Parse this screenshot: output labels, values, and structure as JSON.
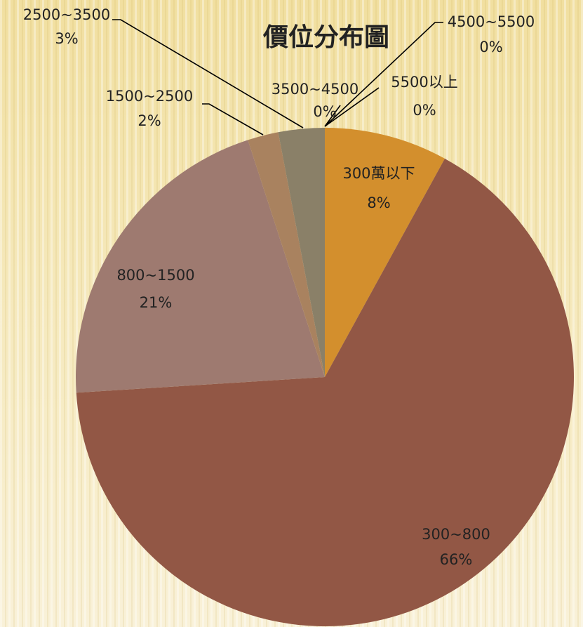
{
  "chart_data": {
    "type": "pie",
    "title": "價位分布圖",
    "categories": [
      "300萬以下",
      "300~800",
      "800~1500",
      "1500~2500",
      "2500~3500",
      "3500~4500",
      "4500~5500",
      "5500以上"
    ],
    "values": [
      8,
      66,
      21,
      2,
      3,
      0,
      0,
      0
    ],
    "value_labels": [
      "8%",
      "66%",
      "21%",
      "2%",
      "3%",
      "0%",
      "0%",
      "0%"
    ],
    "colors": [
      "#d38f2d",
      "#925745",
      "#9e7a70",
      "#a9825f",
      "#8a8068",
      "#7d8a6a",
      "#6f7f8a",
      "#8a6f7f"
    ]
  }
}
